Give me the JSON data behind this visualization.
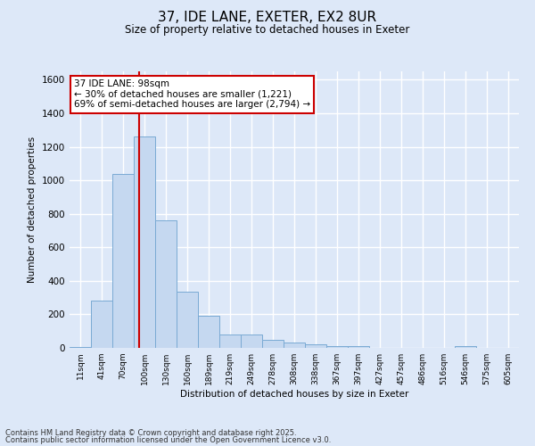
{
  "title1": "37, IDE LANE, EXETER, EX2 8UR",
  "title2": "Size of property relative to detached houses in Exeter",
  "xlabel": "Distribution of detached houses by size in Exeter",
  "ylabel": "Number of detached properties",
  "categories": [
    "11sqm",
    "41sqm",
    "70sqm",
    "100sqm",
    "130sqm",
    "160sqm",
    "189sqm",
    "219sqm",
    "249sqm",
    "278sqm",
    "308sqm",
    "338sqm",
    "367sqm",
    "397sqm",
    "427sqm",
    "457sqm",
    "486sqm",
    "516sqm",
    "546sqm",
    "575sqm",
    "605sqm"
  ],
  "values": [
    5,
    280,
    1040,
    1260,
    760,
    335,
    190,
    80,
    80,
    50,
    30,
    20,
    10,
    10,
    2,
    2,
    2,
    2,
    10,
    2,
    2
  ],
  "bar_color": "#c5d8f0",
  "bar_edge_color": "#7aaad4",
  "background_color": "#dde8f8",
  "grid_color": "#ffffff",
  "vline_x_index": 3,
  "vline_color": "#cc0000",
  "annotation_line1": "37 IDE LANE: 98sqm",
  "annotation_line2": "← 30% of detached houses are smaller (1,221)",
  "annotation_line3": "69% of semi-detached houses are larger (2,794) →",
  "annotation_box_color": "#ffffff",
  "annotation_box_edge_color": "#cc0000",
  "ylim": [
    0,
    1650
  ],
  "yticks": [
    0,
    200,
    400,
    600,
    800,
    1000,
    1200,
    1400,
    1600
  ],
  "footer1": "Contains HM Land Registry data © Crown copyright and database right 2025.",
  "footer2": "Contains public sector information licensed under the Open Government Licence v3.0."
}
